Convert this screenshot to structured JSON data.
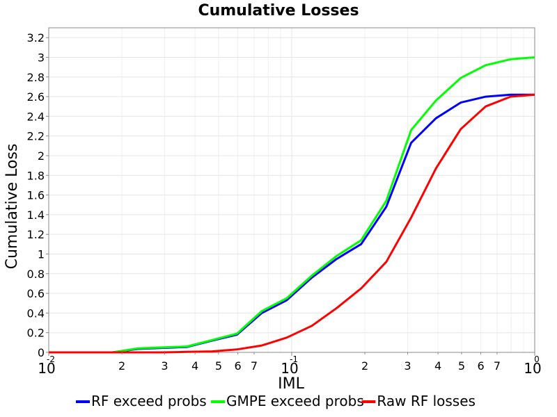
{
  "chart_data": {
    "type": "line",
    "title": "Cumulative Losses",
    "xlabel": "IML",
    "ylabel": "Cumulative Loss",
    "x_scale": "log",
    "xlim": [
      0.01,
      1.0
    ],
    "ylim": [
      0,
      3.3
    ],
    "grid": true,
    "legend_position": "bottom",
    "y_ticks": [
      "0",
      "0.2",
      "0.4",
      "0.6",
      "0.8",
      "1",
      "1.2",
      "1.4",
      "1.6",
      "1.8",
      "2",
      "2.2",
      "2.4",
      "2.6",
      "2.8",
      "3",
      "3.2"
    ],
    "x_major_ticks": [
      {
        "value": 0.01,
        "base": "10",
        "exp": "-2"
      },
      {
        "value": 0.1,
        "base": "10",
        "exp": "-1"
      },
      {
        "value": 1.0,
        "base": "10",
        "exp": "0"
      }
    ],
    "x_minor_ticks": [
      {
        "value": 0.02,
        "label": "2"
      },
      {
        "value": 0.03,
        "label": "3"
      },
      {
        "value": 0.04,
        "label": "4"
      },
      {
        "value": 0.05,
        "label": "5"
      },
      {
        "value": 0.06,
        "label": "6"
      },
      {
        "value": 0.07,
        "label": "7"
      },
      {
        "value": 0.2,
        "label": "2"
      },
      {
        "value": 0.3,
        "label": "3"
      },
      {
        "value": 0.4,
        "label": "4"
      },
      {
        "value": 0.5,
        "label": "5"
      },
      {
        "value": 0.6,
        "label": "6"
      },
      {
        "value": 0.7,
        "label": "7"
      }
    ],
    "series": [
      {
        "name": "RF exceed probs",
        "color": "#0000ff",
        "x": [
          0.01,
          0.0183,
          0.0232,
          0.0293,
          0.0371,
          0.047,
          0.0595,
          0.0753,
          0.0953,
          0.121,
          0.153,
          0.193,
          0.245,
          0.31,
          0.392,
          0.496,
          0.628,
          0.795,
          1.0
        ],
        "y": [
          0,
          0,
          0.035,
          0.045,
          0.055,
          0.12,
          0.18,
          0.4,
          0.53,
          0.76,
          0.95,
          1.1,
          1.48,
          2.13,
          2.38,
          2.54,
          2.6,
          2.62,
          2.62
        ]
      },
      {
        "name": "GMPE exceed probs",
        "color": "#00ff00",
        "x": [
          0.01,
          0.0183,
          0.0232,
          0.0293,
          0.0371,
          0.047,
          0.0595,
          0.0753,
          0.0953,
          0.121,
          0.153,
          0.193,
          0.245,
          0.31,
          0.392,
          0.496,
          0.628,
          0.795,
          1.0
        ],
        "y": [
          0,
          0,
          0.04,
          0.05,
          0.06,
          0.125,
          0.19,
          0.42,
          0.55,
          0.78,
          0.98,
          1.14,
          1.54,
          2.26,
          2.56,
          2.79,
          2.92,
          2.98,
          3.0
        ]
      },
      {
        "name": "Raw RF losses",
        "color": "#ff0000",
        "x": [
          0.01,
          0.0183,
          0.0232,
          0.0293,
          0.0371,
          0.047,
          0.0595,
          0.0753,
          0.0953,
          0.121,
          0.153,
          0.193,
          0.245,
          0.31,
          0.392,
          0.496,
          0.628,
          0.795,
          1.0
        ],
        "y": [
          0,
          0,
          0,
          0,
          0.005,
          0.01,
          0.03,
          0.07,
          0.15,
          0.27,
          0.45,
          0.65,
          0.92,
          1.37,
          1.87,
          2.27,
          2.5,
          2.6,
          2.62
        ]
      }
    ]
  }
}
